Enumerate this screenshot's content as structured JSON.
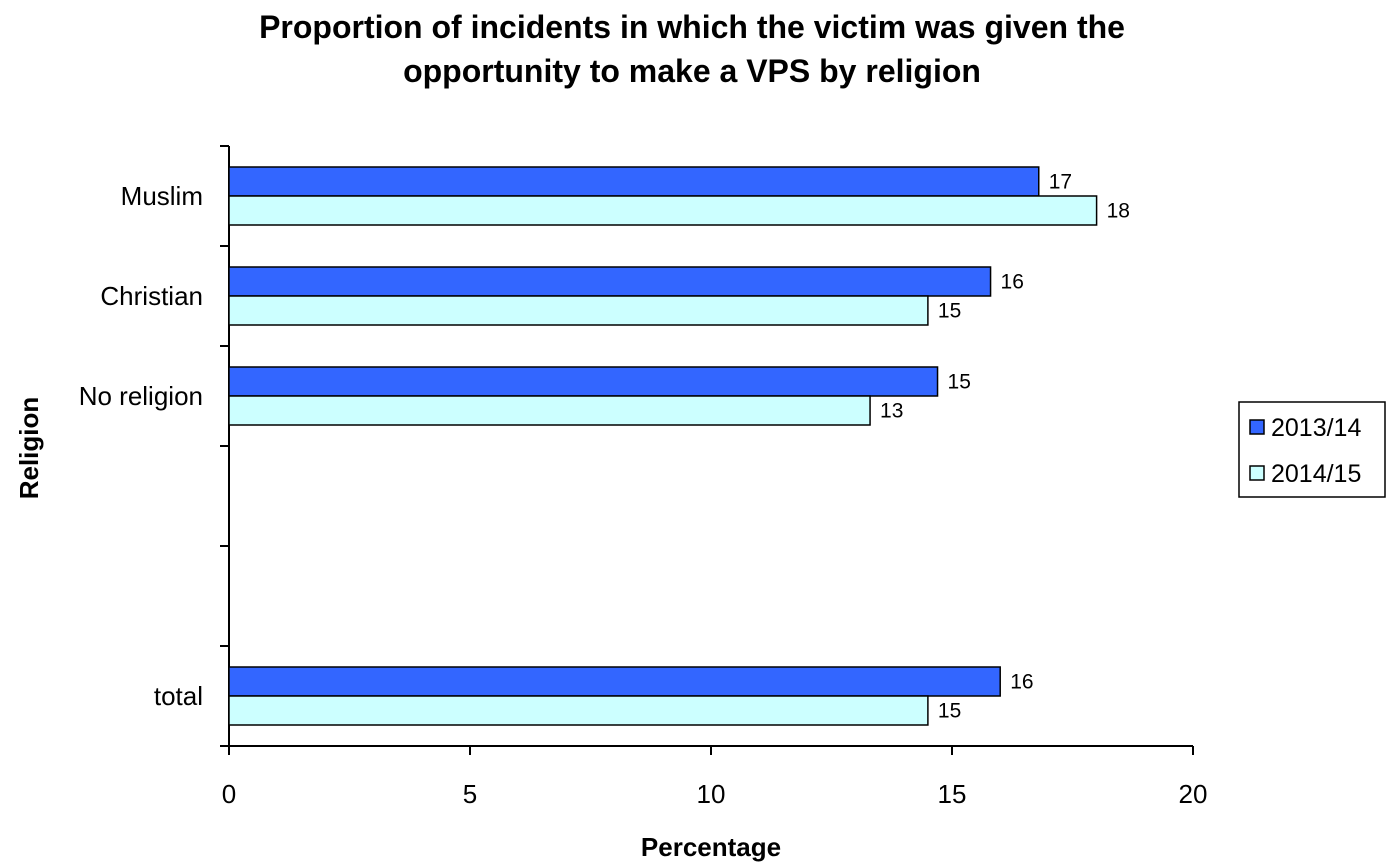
{
  "chart_data": {
    "type": "bar",
    "orientation": "horizontal",
    "title": [
      "Proportion of incidents in which the victim was given the",
      "opportunity to make a VPS by religion"
    ],
    "xlabel": "Percentage",
    "ylabel": "Religion",
    "xlim": [
      0,
      20
    ],
    "x_ticks": [
      "0",
      "5",
      "10",
      "15",
      "20"
    ],
    "categories": [
      "Muslim",
      "Christian",
      "No religion",
      "",
      "",
      "total"
    ],
    "series": [
      {
        "name": "2013/14",
        "color": "#3366FF",
        "values": [
          16.8,
          15.8,
          14.7,
          null,
          null,
          16.0
        ],
        "labels": [
          "17",
          "16",
          "15",
          "",
          "",
          "16"
        ]
      },
      {
        "name": "2014/15",
        "color": "#CCFFFF",
        "values": [
          18.0,
          14.5,
          13.3,
          null,
          null,
          14.5
        ],
        "labels": [
          "18",
          "15",
          "13",
          "",
          "",
          "15"
        ]
      }
    ],
    "grid": false,
    "legend_position": "right"
  }
}
